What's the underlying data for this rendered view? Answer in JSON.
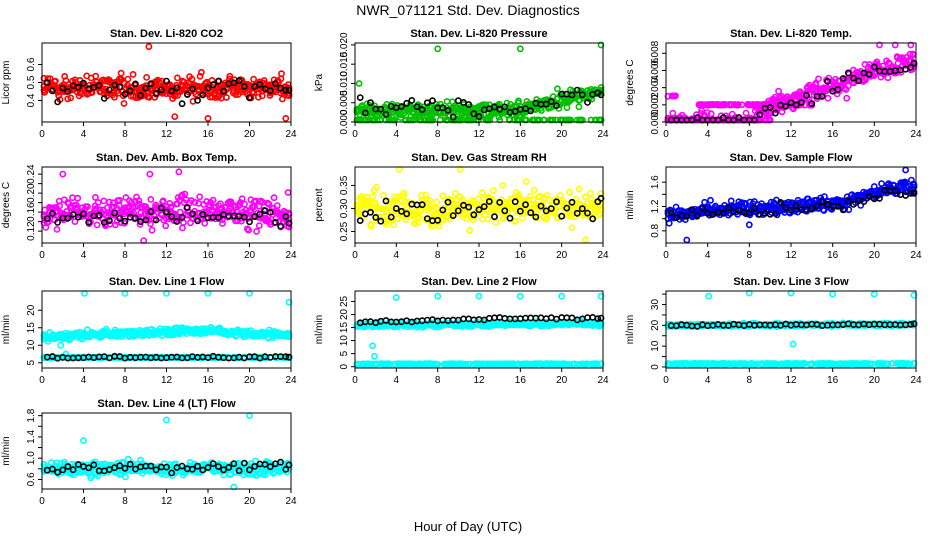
{
  "figure": {
    "title": "NWR_071121  Std. Dev. Diagnostics",
    "xlabel": "Hour of Day (UTC)"
  },
  "colors": {
    "hourly_points": "#000000",
    "red": "#ff0000",
    "green": "#00c000",
    "magenta": "#ff00ff",
    "yellow": "#ffff00",
    "blue": "#0000ff",
    "cyan": "#00ffff"
  },
  "chart_data": [
    {
      "type": "scatter",
      "title": "Stan. Dev. Li-820 CO2",
      "ylabel": "Licor ppm",
      "xlim": [
        0,
        24
      ],
      "ylim": [
        0.28,
        0.72
      ],
      "xticks": [
        0,
        4,
        8,
        12,
        16,
        20,
        24
      ],
      "xtick_labels": [
        "0",
        "4",
        "8",
        "12",
        "16",
        "20",
        "24"
      ],
      "yticks": [
        0.4,
        0.5,
        0.6
      ],
      "ytick_labels": [
        "0.4",
        "0.5",
        "0.6"
      ],
      "series": [
        {
          "color": "#ff0000",
          "trend": [
            [
              0,
              0.47
            ],
            [
              24,
              0.47
            ]
          ],
          "spread": 0.055,
          "bands": [],
          "outliers": [
            [
              10.3,
              0.7
            ],
            [
              16.0,
              0.3
            ],
            [
              23.5,
              0.3
            ],
            [
              12.8,
              0.31
            ]
          ]
        },
        {
          "color": "#000000",
          "trend": [
            [
              0,
              0.47
            ],
            [
              24,
              0.47
            ]
          ],
          "spread": 0.05,
          "hourly": true,
          "bands": [],
          "outliers": []
        }
      ]
    },
    {
      "type": "scatter",
      "title": "Stan. Dev. Li-820 Pressure",
      "ylabel": "kPa",
      "xlim": [
        0,
        24
      ],
      "ylim": [
        0,
        0.0205
      ],
      "xticks": [
        0,
        4,
        8,
        12,
        16,
        20,
        24
      ],
      "xtick_labels": [
        "0",
        "4",
        "8",
        "12",
        "16",
        "20",
        "24"
      ],
      "yticks": [
        0.0,
        0.005,
        0.01,
        0.015,
        0.02
      ],
      "ytick_labels": [
        "0.000",
        "0.005",
        "0.010",
        "0.015",
        "0.020"
      ],
      "series": [
        {
          "color": "#00c000",
          "trend": [
            [
              0,
              0.003
            ],
            [
              16,
              0.003
            ],
            [
              20,
              0.006
            ],
            [
              24,
              0.008
            ]
          ],
          "spread": 0.0017,
          "bands": [
            {
              "x": [
                0,
                24
              ],
              "y": 0.0,
              "density": 0.35
            }
          ],
          "outliers": [
            [
              8.0,
              0.019
            ],
            [
              16.0,
              0.019
            ],
            [
              24.0,
              0.02
            ],
            [
              0.4,
              0.01
            ]
          ]
        },
        {
          "color": "#000000",
          "trend": [
            [
              0,
              0.004
            ],
            [
              16,
              0.003
            ],
            [
              20,
              0.006
            ],
            [
              24,
              0.0075
            ]
          ],
          "spread": 0.002,
          "hourly": true,
          "bands": [],
          "outliers": []
        }
      ]
    },
    {
      "type": "scatter",
      "title": "Stan. Dev. Li-820 Temp.",
      "ylabel": "degrees C",
      "xlim": [
        0,
        24
      ],
      "ylim": [
        0,
        0.0092
      ],
      "xticks": [
        0,
        4,
        8,
        12,
        16,
        20,
        24
      ],
      "xtick_labels": [
        "0",
        "4",
        "8",
        "12",
        "16",
        "20",
        "24"
      ],
      "yticks": [
        0.0,
        0.002,
        0.004,
        0.006,
        0.008
      ],
      "ytick_labels": [
        "0.000",
        "0.002",
        "0.004",
        "0.006",
        "0.008"
      ],
      "series": [
        {
          "color": "#ff00ff",
          "trend": [
            [
              0,
              0.0
            ],
            [
              8,
              0.0
            ],
            [
              10,
              0.002
            ],
            [
              16,
              0.004
            ],
            [
              20,
              0.006
            ],
            [
              24,
              0.0068
            ]
          ],
          "spread": 0.0009,
          "bands": [
            {
              "x": [
                0,
                10
              ],
              "y": 0.0,
              "density": 0.9
            },
            {
              "x": [
                3,
                14
              ],
              "y": 0.002,
              "density": 0.9
            },
            {
              "x": [
                0,
                1
              ],
              "y": 0.003,
              "density": 0.5
            }
          ],
          "outliers": [
            [
              20.5,
              0.009
            ],
            [
              22.0,
              0.009
            ],
            [
              23.5,
              0.009
            ]
          ]
        },
        {
          "color": "#000000",
          "trend": [
            [
              0,
              0.0
            ],
            [
              8,
              0.0
            ],
            [
              10,
              0.001
            ],
            [
              16,
              0.004
            ],
            [
              20,
              0.006
            ],
            [
              24,
              0.007
            ]
          ],
          "spread": 0.0008,
          "hourly": true,
          "bands": [],
          "outliers": []
        }
      ]
    },
    {
      "type": "scatter",
      "title": "Stan. Dev. Amb. Box Temp.",
      "ylabel": "degrees C",
      "xlim": [
        0,
        24
      ],
      "ylim": [
        0.095,
        0.255
      ],
      "xticks": [
        0,
        4,
        8,
        12,
        16,
        20,
        24
      ],
      "xtick_labels": [
        "0",
        "4",
        "8",
        "12",
        "16",
        "20",
        "24"
      ],
      "yticks": [
        0.12,
        0.14,
        0.16,
        0.18,
        0.2,
        0.22,
        0.24
      ],
      "ytick_labels": [
        "0.12",
        "0.16",
        "0.20",
        "0.24"
      ],
      "series": [
        {
          "color": "#ff00ff",
          "trend": [
            [
              0,
              0.16
            ],
            [
              24,
              0.16
            ]
          ],
          "spread": 0.025,
          "bands": [],
          "outliers": [
            [
              2.0,
              0.24
            ],
            [
              13.2,
              0.245
            ],
            [
              9.8,
              0.1
            ],
            [
              10.4,
              0.24
            ]
          ]
        },
        {
          "color": "#000000",
          "trend": [
            [
              0,
              0.15
            ],
            [
              24,
              0.15
            ]
          ],
          "spread": 0.015,
          "hourly": true,
          "bands": [],
          "outliers": []
        }
      ]
    },
    {
      "type": "scatter",
      "title": "Stan. Dev. Gas Stream RH",
      "ylabel": "percent",
      "xlim": [
        0,
        24
      ],
      "ylim": [
        0.225,
        0.39
      ],
      "xticks": [
        0,
        4,
        8,
        12,
        16,
        20,
        24
      ],
      "xtick_labels": [
        "0",
        "4",
        "8",
        "12",
        "16",
        "20",
        "24"
      ],
      "yticks": [
        0.25,
        0.3,
        0.35
      ],
      "ytick_labels": [
        "0.25",
        "0.30",
        "0.35"
      ],
      "series": [
        {
          "color": "#ffff00",
          "trend": [
            [
              0,
              0.3
            ],
            [
              24,
              0.3
            ]
          ],
          "spread": 0.03,
          "bands": [],
          "outliers": [
            [
              10.2,
              0.385
            ],
            [
              4.3,
              0.385
            ],
            [
              22.3,
              0.232
            ]
          ]
        },
        {
          "color": "#000000",
          "trend": [
            [
              0,
              0.3
            ],
            [
              24,
              0.3
            ]
          ],
          "spread": 0.025,
          "hourly": true,
          "bands": [],
          "outliers": []
        }
      ]
    },
    {
      "type": "scatter",
      "title": "Stan. Dev. Sample Flow",
      "ylabel": "ml/min",
      "xlim": [
        0,
        24
      ],
      "ylim": [
        0.6,
        1.85
      ],
      "xticks": [
        0,
        4,
        8,
        12,
        16,
        20,
        24
      ],
      "xtick_labels": [
        "0",
        "4",
        "8",
        "12",
        "16",
        "20",
        "24"
      ],
      "yticks": [
        0.8,
        1.0,
        1.2,
        1.4,
        1.6
      ],
      "ytick_labels": [
        "0.8",
        "1.2",
        "1.6"
      ],
      "series": [
        {
          "color": "#0000ff",
          "trend": [
            [
              0,
              1.05
            ],
            [
              4,
              1.15
            ],
            [
              12,
              1.2
            ],
            [
              17,
              1.25
            ],
            [
              21,
              1.5
            ],
            [
              24,
              1.5
            ]
          ],
          "spread": 0.1,
          "bands": [],
          "outliers": [
            [
              2.0,
              0.65
            ],
            [
              23.0,
              1.8
            ],
            [
              8.0,
              0.9
            ]
          ]
        },
        {
          "color": "#000000",
          "trend": [
            [
              0,
              1.05
            ],
            [
              4,
              1.1
            ],
            [
              12,
              1.15
            ],
            [
              17,
              1.2
            ],
            [
              21,
              1.4
            ],
            [
              24,
              1.45
            ]
          ],
          "spread": 0.08,
          "hourly": true,
          "bands": [],
          "outliers": []
        }
      ]
    },
    {
      "type": "scatter",
      "title": "Stan. Dev. Line 1 Flow",
      "ylabel": "ml/min",
      "xlim": [
        0,
        24
      ],
      "ylim": [
        3.5,
        25.5
      ],
      "xticks": [
        0,
        4,
        8,
        12,
        16,
        20,
        24
      ],
      "xtick_labels": [
        "0",
        "4",
        "8",
        "12",
        "16",
        "20",
        "24"
      ],
      "yticks": [
        5,
        10,
        15,
        20
      ],
      "ytick_labels": [
        "5",
        "10",
        "15",
        "20"
      ],
      "series": [
        {
          "color": "#00ffff",
          "trend": [
            [
              0,
              12.5
            ],
            [
              10,
              13.5
            ],
            [
              16,
              14.5
            ],
            [
              20,
              13.0
            ],
            [
              24,
              13.0
            ]
          ],
          "spread": 0.9,
          "bands": [
            {
              "x": [
                0,
                24
              ],
              "y": 6.5,
              "density": 0.8
            }
          ],
          "outliers": [
            [
              4.1,
              24.8
            ],
            [
              8.0,
              24.8
            ],
            [
              12.0,
              24.8
            ],
            [
              16.0,
              24.8
            ],
            [
              20.0,
              24.8
            ],
            [
              24.0,
              22.3
            ],
            [
              2.3,
              7.5
            ],
            [
              1.8,
              10.0
            ]
          ]
        },
        {
          "color": "#000000",
          "trend": [
            [
              0,
              6.5
            ],
            [
              24,
              6.6
            ]
          ],
          "spread": 0.25,
          "hourly": true,
          "bands": [],
          "outliers": []
        }
      ]
    },
    {
      "type": "scatter",
      "title": "Stan. Dev. Line 2 Flow",
      "ylabel": "ml/min",
      "xlim": [
        0,
        24
      ],
      "ylim": [
        -0.5,
        29
      ],
      "xticks": [
        0,
        4,
        8,
        12,
        16,
        20,
        24
      ],
      "xtick_labels": [
        "0",
        "4",
        "8",
        "12",
        "16",
        "20",
        "24"
      ],
      "yticks": [
        0,
        5,
        10,
        15,
        20,
        25
      ],
      "ytick_labels": [
        "0",
        "5",
        "10",
        "15",
        "20",
        "25"
      ],
      "series": [
        {
          "color": "#00ffff",
          "trend": [
            [
              0,
              16.0
            ],
            [
              24,
              16.5
            ]
          ],
          "spread": 0.7,
          "bands": [
            {
              "x": [
                0,
                24
              ],
              "y": 1.0,
              "density": 0.8
            }
          ],
          "outliers": [
            [
              4.0,
              26.5
            ],
            [
              8.0,
              27.0
            ],
            [
              12.0,
              27.0
            ],
            [
              16.0,
              27.0
            ],
            [
              20.0,
              27.0
            ],
            [
              24.0,
              27.0
            ],
            [
              1.7,
              8.0
            ],
            [
              1.9,
              4.0
            ]
          ]
        },
        {
          "color": "#000000",
          "trend": [
            [
              0,
              17.0
            ],
            [
              16,
              18.5
            ],
            [
              24,
              18.5
            ]
          ],
          "spread": 0.5,
          "hourly": true,
          "bands": [],
          "outliers": []
        }
      ]
    },
    {
      "type": "scatter",
      "title": "Stan. Dev. Line 3 Flow",
      "ylabel": "ml/min",
      "xlim": [
        0,
        24
      ],
      "ylim": [
        -0.5,
        36.5
      ],
      "xticks": [
        0,
        4,
        8,
        12,
        16,
        20,
        24
      ],
      "xtick_labels": [
        "0",
        "4",
        "8",
        "12",
        "16",
        "20",
        "24"
      ],
      "yticks": [
        0,
        5,
        10,
        15,
        20,
        25,
        30,
        35
      ],
      "ytick_labels": [
        "0",
        "10",
        "20",
        "30"
      ],
      "series": [
        {
          "color": "#00ffff",
          "trend": [
            [
              0,
              20.0
            ],
            [
              24,
              20.5
            ]
          ],
          "spread": 0.6,
          "bands": [
            {
              "x": [
                0,
                24
              ],
              "y": 1.5,
              "density": 0.8
            }
          ],
          "outliers": [
            [
              4.1,
              34.0
            ],
            [
              8.0,
              35.5
            ],
            [
              12.0,
              35.5
            ],
            [
              16.0,
              35.0
            ],
            [
              20.0,
              35.0
            ],
            [
              24.0,
              34.5
            ],
            [
              12.2,
              11.0
            ]
          ]
        },
        {
          "color": "#000000",
          "trend": [
            [
              0,
              20.0
            ],
            [
              24,
              20.5
            ]
          ],
          "spread": 0.4,
          "hourly": true,
          "bands": [],
          "outliers": []
        }
      ]
    },
    {
      "type": "scatter",
      "title": "Stan. Dev. Line 4 (LT) Flow",
      "ylabel": "ml/min",
      "xlim": [
        0,
        24
      ],
      "ylim": [
        0.42,
        1.85
      ],
      "xticks": [
        0,
        4,
        8,
        12,
        16,
        20,
        24
      ],
      "xtick_labels": [
        "0",
        "4",
        "8",
        "12",
        "16",
        "20",
        "24"
      ],
      "yticks": [
        0.6,
        0.8,
        1.0,
        1.2,
        1.4,
        1.6,
        1.8
      ],
      "ytick_labels": [
        "0.6",
        "1.0",
        "1.4",
        "1.8"
      ],
      "series": [
        {
          "color": "#00ffff",
          "trend": [
            [
              0,
              0.8
            ],
            [
              24,
              0.8
            ]
          ],
          "spread": 0.1,
          "bands": [],
          "outliers": [
            [
              4.0,
              1.33
            ],
            [
              12.0,
              1.72
            ],
            [
              20.0,
              1.8
            ],
            [
              18.5,
              0.45
            ]
          ]
        },
        {
          "color": "#000000",
          "trend": [
            [
              0,
              0.8
            ],
            [
              24,
              0.85
            ]
          ],
          "spread": 0.08,
          "hourly": true,
          "bands": [],
          "outliers": []
        }
      ]
    }
  ]
}
